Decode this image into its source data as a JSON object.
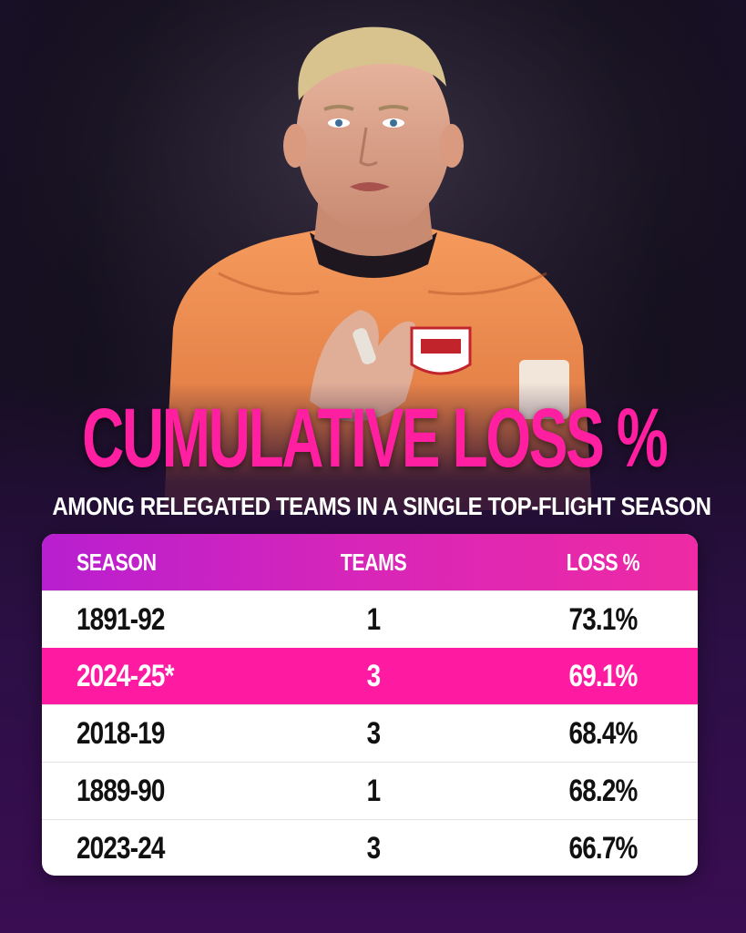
{
  "title": "CUMULATIVE LOSS %",
  "subtitle": "AMONG RELEGATED TEAMS IN A SINGLE TOP-FLIGHT SEASON",
  "colors": {
    "accent": "#ff1aa2",
    "header_gradient_start": "#b81fd0",
    "header_gradient_end": "#ee2aa4",
    "background": "#1b0f2c",
    "kit_orange": "#f08a4b"
  },
  "chart_data": {
    "type": "table",
    "columns": [
      "SEASON",
      "TEAMS",
      "LOSS %"
    ],
    "rows": [
      {
        "season": "1891-92",
        "teams": "1",
        "loss": "73.1%",
        "highlight": false
      },
      {
        "season": "2024-25*",
        "teams": "3",
        "loss": "69.1%",
        "highlight": true
      },
      {
        "season": "2018-19",
        "teams": "3",
        "loss": "68.4%",
        "highlight": false
      },
      {
        "season": "1889-90",
        "teams": "1",
        "loss": "68.2%",
        "highlight": false
      },
      {
        "season": "2023-24",
        "teams": "3",
        "loss": "66.7%",
        "highlight": false
      }
    ]
  }
}
